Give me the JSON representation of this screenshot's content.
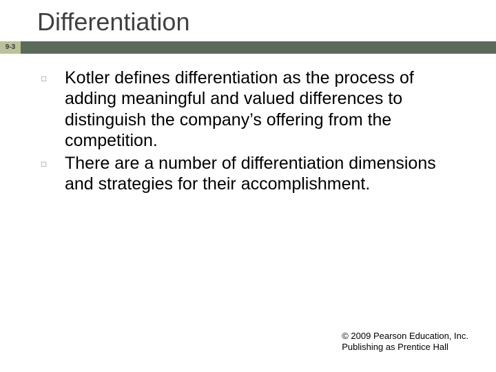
{
  "slide": {
    "title": "Differentiation",
    "slide_number": "9-3",
    "band_color": "#5c6a5a",
    "slide_num_bg": "#b9c29a",
    "title_color": "#404040",
    "title_fontsize": 36,
    "body_fontsize": 25,
    "bullet_marker": "□",
    "bullets": [
      "Kotler defines differentiation as the process of adding meaningful and valued differences to distinguish the company’s offering from the competition.",
      "There are a number of differentiation dimensions and strategies for their accomplishment."
    ],
    "footer_line1": "© 2009 Pearson Education, Inc.",
    "footer_line2": "Publishing as Prentice Hall",
    "footer_fontsize": 13,
    "background_color": "#ffffff"
  }
}
